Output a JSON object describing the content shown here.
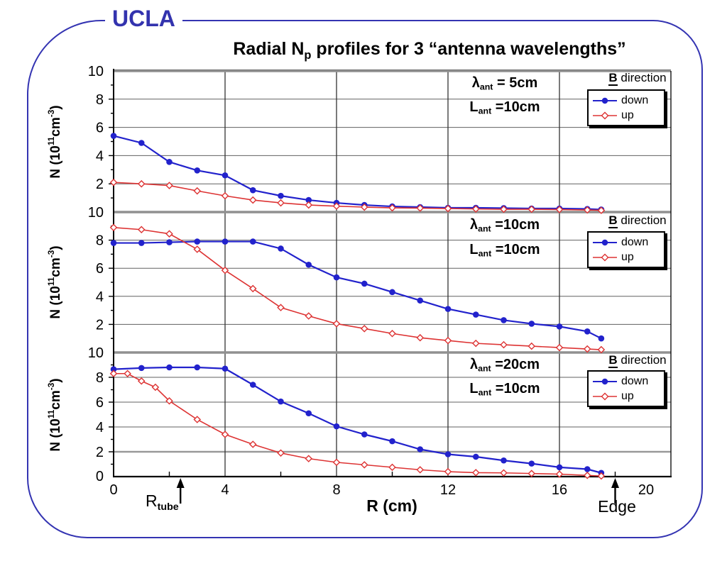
{
  "slide": {
    "brand": "UCLA"
  },
  "title": {
    "prefix": "Radial N",
    "sub": "p",
    "suffix": " profiles for 3 “antenna wavelengths”"
  },
  "axes": {
    "x_title": "R (cm)",
    "y_title": {
      "prefix": "N (10",
      "sup1": "11",
      "mid": "cm",
      "sup2": "-3",
      "suffix": ")"
    },
    "x_ticks": [
      0,
      4,
      8,
      12,
      16,
      20
    ],
    "y_ticks": [
      10,
      8,
      6,
      4,
      2
    ],
    "y_zero_label": "0",
    "x_range": [
      0,
      20
    ],
    "y_range": [
      0,
      10
    ]
  },
  "annotations": {
    "r_tube": {
      "base": "R",
      "sub": "tube",
      "x_cm": 2.4
    },
    "edge": {
      "label": "Edge",
      "x_cm": 18
    }
  },
  "legend": {
    "b": "B",
    "direction": " direction",
    "down": "down",
    "up": "up"
  },
  "colors": {
    "down_blue": "#2222CC",
    "up_red": "#DD3333",
    "frame_blue": "#3434B2",
    "grid_gray": "#606060",
    "boundary_gray": "#909090"
  },
  "charts": [
    {
      "lambda_base": "λ",
      "lambda_sub": "ant",
      "lambda_value": " = 5cm",
      "l_base": "L",
      "l_sub": "ant",
      "l_value": " =10cm"
    },
    {
      "lambda_base": "λ",
      "lambda_sub": "ant",
      "lambda_value": " =10cm",
      "l_base": "L",
      "l_sub": "ant",
      "l_value": " =10cm"
    },
    {
      "lambda_base": "λ",
      "lambda_sub": "ant",
      "lambda_value": " =20cm",
      "l_base": "L",
      "l_sub": "ant",
      "l_value": " =10cm"
    }
  ],
  "chart_data": [
    {
      "type": "line",
      "lambda_ant": "5cm",
      "L_ant": "10cm",
      "x_label": "R (cm)",
      "y_label": "N (10^11 cm^-3)",
      "x_range": [
        0,
        20
      ],
      "y_range": [
        0,
        10
      ],
      "legend_title": "B direction",
      "legend_position": "top-right",
      "series": [
        {
          "name": "down",
          "color": "#2222CC",
          "marker": "filled-circle",
          "x": [
            0,
            1,
            2,
            3,
            4,
            5,
            6,
            7,
            8,
            9,
            10,
            11,
            12,
            13,
            14,
            15,
            16,
            17,
            17.5
          ],
          "y": [
            5.4,
            4.9,
            3.55,
            2.95,
            2.6,
            1.55,
            1.15,
            0.85,
            0.65,
            0.5,
            0.4,
            0.35,
            0.3,
            0.3,
            0.28,
            0.25,
            0.25,
            0.22,
            0.18
          ]
        },
        {
          "name": "up",
          "color": "#DD3333",
          "marker": "open-diamond",
          "x": [
            0,
            1,
            2,
            3,
            4,
            5,
            6,
            7,
            8,
            9,
            10,
            11,
            12,
            13,
            14,
            15,
            16,
            17,
            17.5
          ],
          "y": [
            2.1,
            2.0,
            1.88,
            1.5,
            1.15,
            0.85,
            0.65,
            0.5,
            0.42,
            0.35,
            0.3,
            0.28,
            0.25,
            0.22,
            0.2,
            0.2,
            0.18,
            0.15,
            0.12
          ]
        }
      ]
    },
    {
      "type": "line",
      "lambda_ant": "10cm",
      "L_ant": "10cm",
      "x_label": "R (cm)",
      "y_label": "N (10^11 cm^-3)",
      "x_range": [
        0,
        20
      ],
      "y_range": [
        0,
        10
      ],
      "legend_title": "B direction",
      "legend_position": "top-right",
      "series": [
        {
          "name": "down",
          "color": "#2222CC",
          "marker": "filled-circle",
          "x": [
            0,
            1,
            2,
            3,
            4,
            5,
            6,
            7,
            8,
            9,
            10,
            11,
            12,
            13,
            14,
            15,
            16,
            17,
            17.5
          ],
          "y": [
            7.8,
            7.8,
            7.85,
            7.9,
            7.9,
            7.9,
            7.4,
            6.25,
            5.35,
            4.9,
            4.3,
            3.7,
            3.1,
            2.7,
            2.3,
            2.05,
            1.85,
            1.5,
            1.0
          ]
        },
        {
          "name": "up",
          "color": "#DD3333",
          "marker": "open-diamond",
          "x": [
            0,
            1,
            2,
            3,
            4,
            5,
            6,
            7,
            8,
            9,
            10,
            11,
            12,
            13,
            14,
            15,
            16,
            17,
            17.5
          ],
          "y": [
            8.9,
            8.75,
            8.45,
            7.35,
            5.85,
            4.55,
            3.2,
            2.6,
            2.05,
            1.7,
            1.35,
            1.05,
            0.85,
            0.65,
            0.55,
            0.45,
            0.35,
            0.25,
            0.2
          ]
        }
      ]
    },
    {
      "type": "line",
      "lambda_ant": "20cm",
      "L_ant": "10cm",
      "x_label": "R (cm)",
      "y_label": "N (10^11 cm^-3)",
      "x_range": [
        0,
        20
      ],
      "y_range": [
        0,
        10
      ],
      "legend_title": "B direction",
      "legend_position": "top-right",
      "series": [
        {
          "name": "down",
          "color": "#2222CC",
          "marker": "filled-circle",
          "x": [
            0,
            1,
            2,
            3,
            4,
            5,
            6,
            7,
            8,
            9,
            10,
            11,
            12,
            13,
            14,
            15,
            16,
            17,
            17.5
          ],
          "y": [
            8.65,
            8.75,
            8.8,
            8.8,
            8.7,
            7.4,
            6.05,
            5.1,
            4.05,
            3.4,
            2.85,
            2.2,
            1.8,
            1.6,
            1.3,
            1.05,
            0.75,
            0.6,
            0.3
          ]
        },
        {
          "name": "up",
          "color": "#DD3333",
          "marker": "open-diamond",
          "x": [
            0,
            0.5,
            1,
            1.5,
            2,
            3,
            4,
            5,
            6,
            7,
            8,
            9,
            10,
            11,
            12,
            13,
            14,
            15,
            16,
            17,
            17.5
          ],
          "y": [
            8.3,
            8.3,
            7.7,
            7.2,
            6.1,
            4.6,
            3.4,
            2.6,
            1.9,
            1.45,
            1.15,
            0.95,
            0.75,
            0.55,
            0.4,
            0.32,
            0.3,
            0.25,
            0.2,
            0.1,
            0.05
          ]
        }
      ]
    }
  ]
}
